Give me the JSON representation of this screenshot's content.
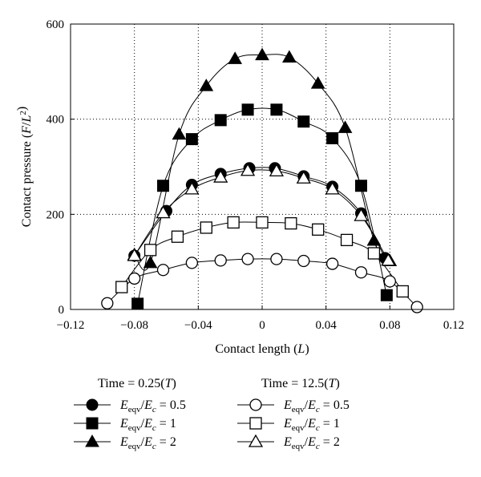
{
  "chart_data": {
    "type": "line",
    "title": "",
    "xlabel": "Contact length (L)",
    "ylabel": "Contact pressure (F/L²)",
    "xlim": [
      -0.12,
      0.12
    ],
    "ylim": [
      0,
      600
    ],
    "xticks": [
      "−0.12",
      "−0.08",
      "−0.04",
      "0",
      "0.04",
      "0.08",
      "0.12"
    ],
    "xtick_values": [
      -0.12,
      -0.08,
      -0.04,
      0,
      0.04,
      0.08,
      0.12
    ],
    "yticks": [
      "0",
      "200",
      "400",
      "600"
    ],
    "ytick_values": [
      0,
      200,
      400,
      600
    ],
    "grid": "dotted",
    "legend": {
      "placement": "bottom",
      "groups": [
        {
          "title_prefix": "Time = 0.25(",
          "title_var": "T",
          "title_suffix": ")"
        },
        {
          "title_prefix": "Time = 12.5(",
          "title_var": "T",
          "title_suffix": ")"
        }
      ],
      "entries": [
        {
          "group": 0,
          "marker": "circle",
          "filled": true,
          "ratio": "0.5"
        },
        {
          "group": 0,
          "marker": "square",
          "filled": true,
          "ratio": "1"
        },
        {
          "group": 0,
          "marker": "triangle",
          "filled": true,
          "ratio": "2"
        },
        {
          "group": 1,
          "marker": "circle",
          "filled": false,
          "ratio": "0.5"
        },
        {
          "group": 1,
          "marker": "square",
          "filled": false,
          "ratio": "1"
        },
        {
          "group": 1,
          "marker": "triangle",
          "filled": false,
          "ratio": "2"
        }
      ]
    },
    "series": [
      {
        "marker": "circle",
        "filled": true,
        "x": [
          -0.08,
          -0.06,
          -0.044,
          -0.026,
          -0.008,
          0.008,
          0.026,
          0.044,
          0.062,
          0.077
        ],
        "y": [
          113,
          207,
          262,
          285,
          297,
          297,
          280,
          258,
          202,
          108
        ]
      },
      {
        "marker": "square",
        "filled": true,
        "x": [
          -0.078,
          -0.062,
          -0.044,
          -0.026,
          -0.009,
          0.009,
          0.026,
          0.044,
          0.062,
          0.078
        ],
        "y": [
          12,
          260,
          358,
          398,
          420,
          420,
          395,
          360,
          260,
          30
        ]
      },
      {
        "marker": "triangle",
        "filled": true,
        "x": [
          -0.08,
          -0.07,
          -0.052,
          -0.035,
          -0.017,
          0.0,
          0.017,
          0.035,
          0.052,
          0.07,
          0.08
        ],
        "y": [
          115,
          98,
          368,
          470,
          527,
          535,
          530,
          475,
          382,
          145,
          102
        ]
      },
      {
        "marker": "circle",
        "filled": false,
        "x": [
          -0.097,
          -0.08,
          -0.062,
          -0.044,
          -0.026,
          -0.009,
          0.009,
          0.026,
          0.044,
          0.062,
          0.08,
          0.097
        ],
        "y": [
          13,
          65,
          83,
          98,
          103,
          106,
          106,
          102,
          96,
          78,
          59,
          5
        ]
      },
      {
        "marker": "square",
        "filled": false,
        "x": [
          -0.088,
          -0.07,
          -0.053,
          -0.035,
          -0.018,
          0.0,
          0.018,
          0.035,
          0.053,
          0.07,
          0.088
        ],
        "y": [
          47,
          125,
          153,
          172,
          183,
          183,
          181,
          168,
          146,
          118,
          38
        ]
      },
      {
        "marker": "triangle",
        "filled": false,
        "x": [
          -0.08,
          -0.062,
          -0.044,
          -0.026,
          -0.009,
          0.009,
          0.026,
          0.044,
          0.062,
          0.079
        ],
        "y": [
          113,
          203,
          253,
          278,
          292,
          291,
          276,
          253,
          197,
          103
        ]
      }
    ]
  }
}
